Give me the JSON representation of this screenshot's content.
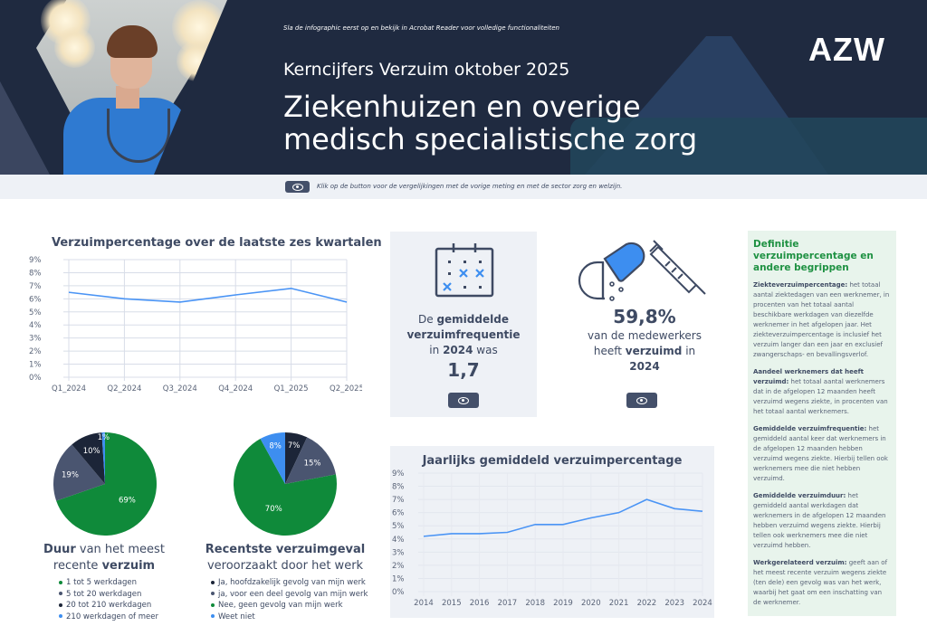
{
  "header": {
    "note": "Sla de infographic eerst op en bekijk in Acrobat Reader voor volledige functionaliteiten",
    "subtitle": "Kerncijfers Verzuim oktober 2025",
    "title_line1": "Ziekenhuizen en overige",
    "title_line2": "medisch specialistische zorg",
    "logo": "AZW"
  },
  "infobar": {
    "button_icon": "eye-icon",
    "text": "Klik op de button voor de vergelijkingen met de vorige meting en met de sector zorg en welzijn."
  },
  "kpi_frequency": {
    "line1_pre": "De ",
    "line1_bold": "gemiddelde",
    "line2_bold": "verzuimfrequentie",
    "line3_pre": "in ",
    "line3_bold": "2024",
    "line3_post": " was",
    "value": "1,7",
    "icon": "calendar-icon",
    "button_icon": "eye-icon"
  },
  "kpi_share": {
    "value": "59,8%",
    "line1": "van de medewerkers",
    "line2_pre": "heeft ",
    "line2_bold": "verzuimd",
    "line2_post": " in",
    "line3_bold": "2024",
    "icon": "pill-syringe-icon",
    "button_icon": "eye-icon"
  },
  "pie_duration": {
    "title_bold": "Duur",
    "title_rest": " van het meest",
    "title_line2_pre": "recente ",
    "title_line2_bold": "verzuim",
    "legend": [
      {
        "label": "1 tot 5 werkdagen",
        "color": "#0f8a3a"
      },
      {
        "label": "5 tot 20 werkdagen",
        "color": "#4a5570"
      },
      {
        "label": "20 tot 210 werkdagen",
        "color": "#1c2538"
      },
      {
        "label": "210 werkdagen of meer",
        "color": "#3d8ef0"
      }
    ]
  },
  "pie_work": {
    "title_line1": "Recentste verzuimgeval",
    "title_line2": "veroorzaakt door het werk",
    "legend": [
      {
        "label": "Ja, hoofdzakelijk gevolg van mijn werk",
        "color": "#1c2538"
      },
      {
        "label": "ja, voor een deel gevolg van mijn werk",
        "color": "#4a5570"
      },
      {
        "label": "Nee, geen gevolg van mijn werk",
        "color": "#0f8a3a"
      },
      {
        "label": "Weet niet",
        "color": "#3d8ef0"
      }
    ]
  },
  "definitions": {
    "title": "Definitie verzuimpercentage en andere begrippen",
    "items": [
      {
        "term": "Ziekteverzuimpercentage:",
        "text": " het totaal aantal ziektedagen van een werknemer, in procenten van het totaal aantal beschikbare werkdagen van diezelfde werknemer in het afgelopen jaar. Het ziekteverzuimpercentage is inclusief het verzuim langer dan een jaar en exclusief zwangerschaps- en bevallingsverlof."
      },
      {
        "term": "Aandeel werknemers dat heeft verzuimd:",
        "text": " het totaal aantal werknemers dat in de afgelopen 12 maanden heeft verzuimd wegens ziekte, in procenten van het totaal aantal werknemers."
      },
      {
        "term": "Gemiddelde verzuimfrequentie:",
        "text": " het gemiddeld aantal keer dat werknemers in de afgelopen 12 maanden hebben verzuimd wegens ziekte. Hierbij tellen ook werknemers mee die niet hebben verzuimd."
      },
      {
        "term": "Gemiddelde verzuimduur:",
        "text": " het gemiddeld aantal werkdagen dat werknemers in de afgelopen 12 maanden hebben verzuimd wegens ziekte. Hierbij tellen ook werknemers mee die niet verzuimd hebben."
      },
      {
        "term": "Werkgerelateerd verzuim:",
        "text": " geeft aan of het meest recente verzuim wegens ziekte (ten dele) een gevolg was van het werk, waarbij het gaat om een inschatting van de werknemer."
      }
    ]
  },
  "colors": {
    "navy": "#1f2a40",
    "line_blue": "#4a94f5",
    "green": "#0f8a3a",
    "slate": "#4a5570",
    "dark": "#1c2538",
    "light_blue": "#3d8ef0",
    "def_title_green": "#1e9142"
  },
  "chart_data": [
    {
      "type": "line",
      "title": "Verzuimpercentage over de laatste zes kwartalen",
      "categories": [
        "Q1_2024",
        "Q2_2024",
        "Q3_2024",
        "Q4_2024",
        "Q1_2025",
        "Q2_2025"
      ],
      "series": [
        {
          "name": "Verzuimpercentage",
          "values": [
            6.5,
            6.0,
            5.75,
            6.3,
            6.8,
            5.75
          ]
        }
      ],
      "yticks": [
        "0%",
        "1%",
        "2%",
        "3%",
        "4%",
        "5%",
        "6%",
        "7%",
        "8%",
        "9%"
      ],
      "ylim": [
        0,
        9
      ],
      "xlabel": "",
      "ylabel": "",
      "grid": true
    },
    {
      "type": "line",
      "title": "Jaarlijks gemiddeld verzuimpercentage",
      "categories": [
        "2014",
        "2015",
        "2016",
        "2017",
        "2018",
        "2019",
        "2020",
        "2021",
        "2022",
        "2023",
        "2024"
      ],
      "series": [
        {
          "name": "Verzuimpercentage",
          "values": [
            4.2,
            4.4,
            4.4,
            4.5,
            5.1,
            5.1,
            5.6,
            6.0,
            7.0,
            6.3,
            6.1
          ]
        }
      ],
      "yticks": [
        "0%",
        "1%",
        "2%",
        "3%",
        "4%",
        "5%",
        "6%",
        "7%",
        "8%",
        "9%"
      ],
      "ylim": [
        0,
        9
      ],
      "xlabel": "",
      "ylabel": "",
      "grid": true
    },
    {
      "type": "pie",
      "title": "Duur van het meest recente verzuim",
      "categories": [
        "1 tot 5 werkdagen",
        "5 tot 20 werkdagen",
        "20 tot 210 werkdagen",
        "210 werkdagen of meer"
      ],
      "values": [
        69,
        19,
        10,
        1
      ],
      "labels": [
        "69%",
        "19%",
        "10%",
        "1%"
      ],
      "legend_position": "bottom"
    },
    {
      "type": "pie",
      "title": "Recentste verzuimgeval veroorzaakt door het werk",
      "categories": [
        "Ja, hoofdzakelijk gevolg van mijn werk",
        "ja, voor een deel gevolg van mijn werk",
        "Nee, geen gevolg van mijn werk",
        "Weet niet"
      ],
      "values": [
        7,
        15,
        70,
        8
      ],
      "labels": [
        "7%",
        "15%",
        "70%",
        "8%"
      ],
      "legend_position": "bottom"
    }
  ]
}
